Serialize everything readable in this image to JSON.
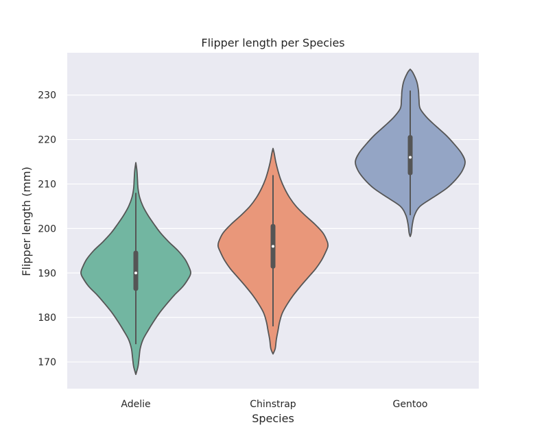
{
  "chart_data": {
    "type": "violin",
    "title": "Flipper length per Species",
    "xlabel": "Species",
    "ylabel": "Flipper length (mm)",
    "ylim": [
      164,
      239.5
    ],
    "yticks": [
      170,
      180,
      190,
      200,
      210,
      220,
      230
    ],
    "grid": true,
    "background_color": "#eaeaf2",
    "outline_color": "#555555",
    "categories": [
      "Adelie",
      "Chinstrap",
      "Gentoo"
    ],
    "series": [
      {
        "category": "Adelie",
        "color": "#72b6a1",
        "min": 174,
        "q1": 186,
        "median": 190,
        "q3": 195,
        "max": 208,
        "kde_min": 167.2,
        "kde_max": 214.8,
        "density": [
          [
            167.2,
            0.0
          ],
          [
            169,
            0.04
          ],
          [
            171,
            0.06
          ],
          [
            173,
            0.08
          ],
          [
            175,
            0.13
          ],
          [
            177,
            0.22
          ],
          [
            179,
            0.32
          ],
          [
            181,
            0.43
          ],
          [
            183,
            0.56
          ],
          [
            185,
            0.7
          ],
          [
            187,
            0.86
          ],
          [
            189,
            0.97
          ],
          [
            190,
            1.0
          ],
          [
            191,
            0.98
          ],
          [
            193,
            0.9
          ],
          [
            195,
            0.77
          ],
          [
            197,
            0.6
          ],
          [
            199,
            0.45
          ],
          [
            201,
            0.33
          ],
          [
            203,
            0.22
          ],
          [
            205,
            0.13
          ],
          [
            207,
            0.07
          ],
          [
            209,
            0.04
          ],
          [
            211,
            0.03
          ],
          [
            213,
            0.02
          ],
          [
            214.8,
            0.0
          ]
        ]
      },
      {
        "category": "Chinstrap",
        "color": "#e9977a",
        "min": 178,
        "q1": 191,
        "median": 196,
        "q3": 201,
        "max": 212,
        "kde_min": 171.8,
        "kde_max": 218.0,
        "density": [
          [
            171.8,
            0.0
          ],
          [
            173,
            0.04
          ],
          [
            175,
            0.06
          ],
          [
            177,
            0.09
          ],
          [
            179,
            0.12
          ],
          [
            181,
            0.17
          ],
          [
            183,
            0.26
          ],
          [
            185,
            0.37
          ],
          [
            187,
            0.5
          ],
          [
            189,
            0.64
          ],
          [
            191,
            0.78
          ],
          [
            193,
            0.89
          ],
          [
            195,
            0.97
          ],
          [
            196,
            1.0
          ],
          [
            197,
            0.99
          ],
          [
            199,
            0.91
          ],
          [
            201,
            0.76
          ],
          [
            203,
            0.58
          ],
          [
            205,
            0.42
          ],
          [
            207,
            0.3
          ],
          [
            209,
            0.21
          ],
          [
            211,
            0.14
          ],
          [
            213,
            0.09
          ],
          [
            215,
            0.05
          ],
          [
            217,
            0.02
          ],
          [
            218.0,
            0.0
          ]
        ]
      },
      {
        "category": "Gentoo",
        "color": "#94a5c5",
        "min": 203,
        "q1": 212,
        "median": 216,
        "q3": 221,
        "max": 231,
        "kde_min": 198.2,
        "kde_max": 235.8,
        "density": [
          [
            198.2,
            0.0
          ],
          [
            199,
            0.02
          ],
          [
            201,
            0.04
          ],
          [
            203,
            0.08
          ],
          [
            205,
            0.18
          ],
          [
            207,
            0.42
          ],
          [
            209,
            0.66
          ],
          [
            211,
            0.83
          ],
          [
            213,
            0.95
          ],
          [
            215,
            1.0
          ],
          [
            217,
            0.93
          ],
          [
            219,
            0.8
          ],
          [
            221,
            0.65
          ],
          [
            223,
            0.47
          ],
          [
            225,
            0.3
          ],
          [
            227,
            0.18
          ],
          [
            229,
            0.16
          ],
          [
            231,
            0.15
          ],
          [
            233,
            0.12
          ],
          [
            235,
            0.05
          ],
          [
            235.8,
            0.0
          ]
        ]
      }
    ]
  }
}
